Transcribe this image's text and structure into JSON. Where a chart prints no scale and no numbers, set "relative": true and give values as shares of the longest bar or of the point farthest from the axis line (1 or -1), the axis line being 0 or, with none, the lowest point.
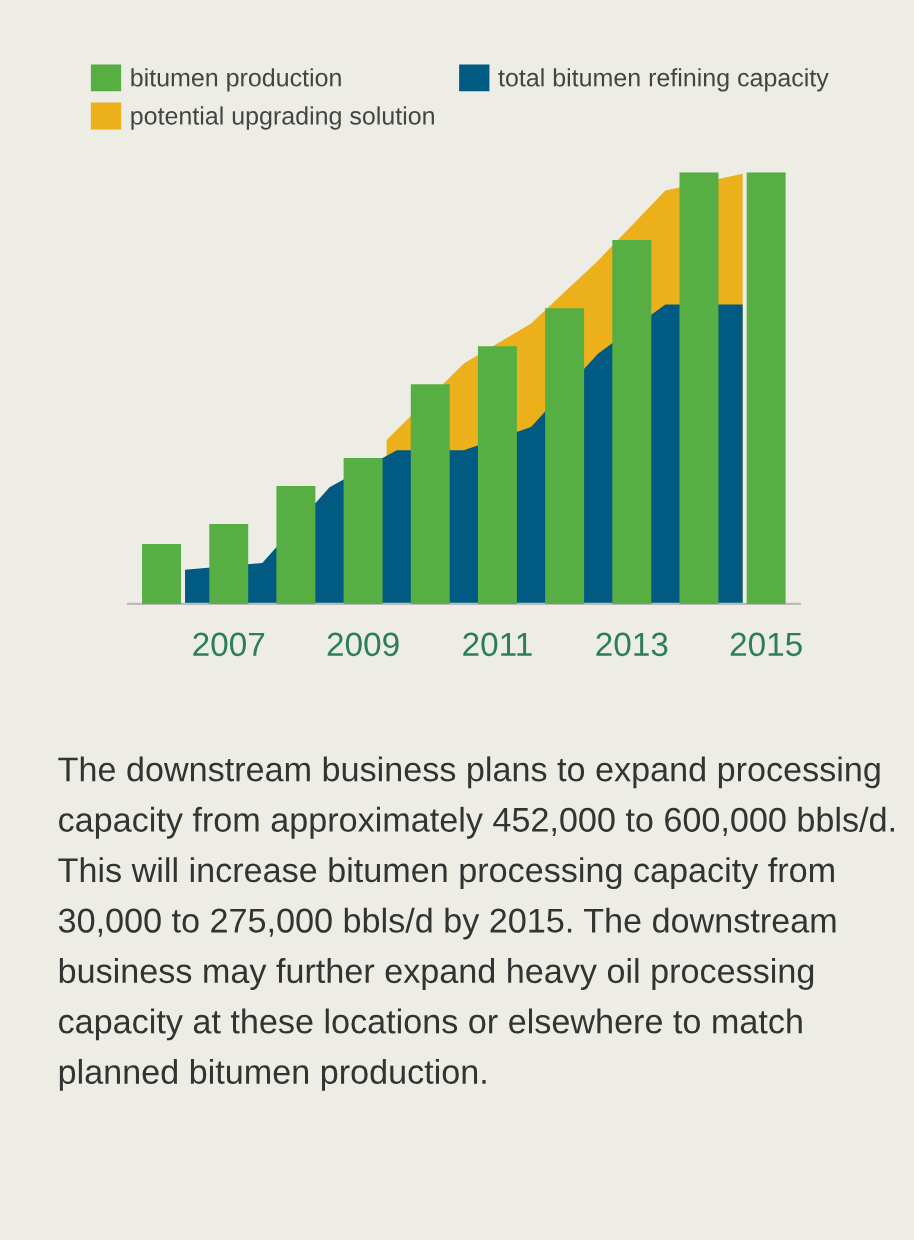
{
  "chart_data": {
    "type": "bar",
    "relative": true,
    "legend": "top left",
    "grid": false,
    "x": [
      2006,
      2007,
      2008,
      2009,
      2010,
      2011,
      2012,
      2013,
      2014,
      2015
    ],
    "xlim": [
      2005.5,
      2015.5
    ],
    "xticks": [
      2007,
      2009,
      2011,
      2013,
      2015
    ],
    "series": [
      {
        "name": "bitumen production",
        "color": "#57ae42",
        "values": [
          0.139,
          0.185,
          0.273,
          0.338,
          0.509,
          0.597,
          0.685,
          0.843,
          1,
          1
        ]
      },
      {
        "name": "total bitumen refining capacity",
        "type": "area",
        "color": "#005a82",
        "x": [
          2006.35,
          2007.5,
          2008.5,
          2009.5,
          2010.5,
          2011.5,
          2012.5,
          2013.5,
          2014.65
        ],
        "values": [
          0.079,
          0.095,
          0.27,
          0.356,
          0.356,
          0.41,
          0.58,
          0.694,
          0.694
        ]
      },
      {
        "name": "potential upgrading solution",
        "type": "area",
        "color": "#ecb01a",
        "x": [
          2009.35,
          2010.5,
          2011.5,
          2012.5,
          2013.5,
          2014.65
        ],
        "values": [
          0.38,
          0.557,
          0.65,
          0.796,
          0.958,
          0.997
        ]
      }
    ],
    "annotations": [
      "The downstream business plans to expand processing capacity from approximately 452,000 to 600,000 bbls/d. This will increase bitumen processing capacity from 30,000 to 275,000 bbls/d by 2015. The downstream business may further expand heavy oil processing capacity at these locations or elsewhere to match planned bitumen production."
    ]
  }
}
